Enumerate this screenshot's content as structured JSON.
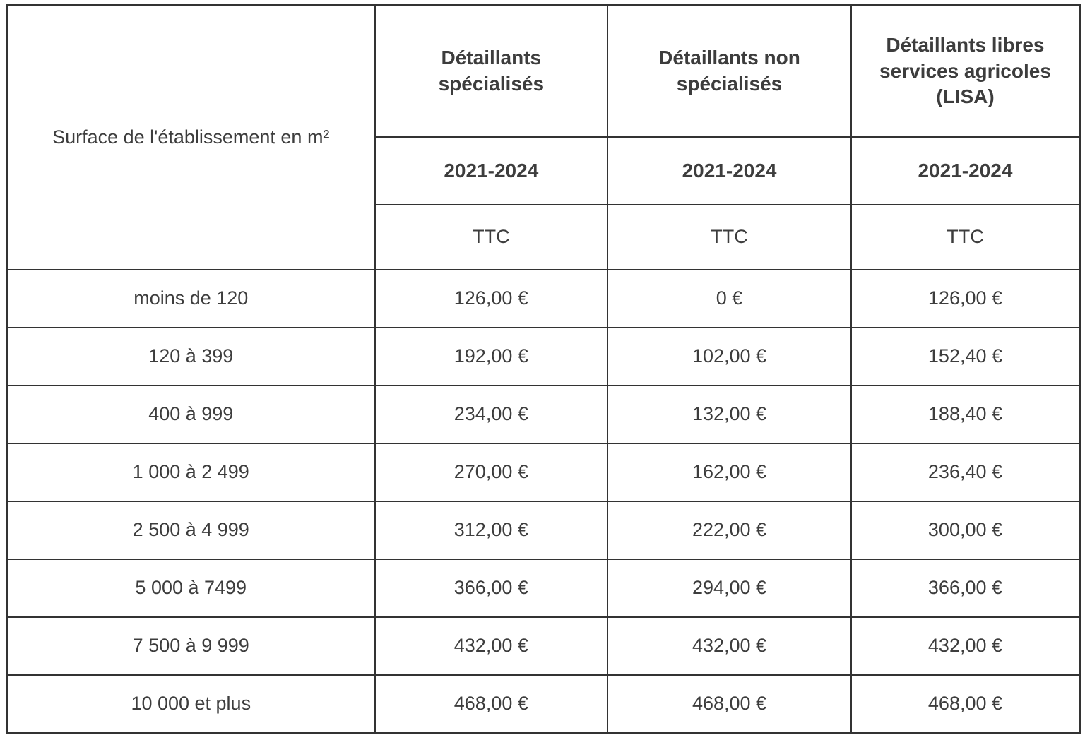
{
  "colors": {
    "border": "#333333",
    "text": "#3d3d3d",
    "background": "#ffffff"
  },
  "table": {
    "corner_header": "Surface de l'établissement en m²",
    "column_groups": [
      {
        "name": "Détaillants spécialisés",
        "period": "2021-2024",
        "tax": "TTC"
      },
      {
        "name": "Détaillants non spécialisés",
        "period": "2021-2024",
        "tax": "TTC"
      },
      {
        "name": "Détaillants libres services agricoles (LISA)",
        "period": "2021-2024",
        "tax": "TTC"
      }
    ],
    "rows": [
      {
        "surface": "moins de 120",
        "values": [
          "126,00 €",
          "0 €",
          "126,00 €"
        ]
      },
      {
        "surface": "120 à 399",
        "values": [
          "192,00 €",
          "102,00 €",
          "152,40 €"
        ]
      },
      {
        "surface": "400 à 999",
        "values": [
          "234,00 €",
          "132,00 €",
          "188,40 €"
        ]
      },
      {
        "surface": "1 000 à 2 499",
        "values": [
          "270,00 €",
          "162,00 €",
          "236,40 €"
        ]
      },
      {
        "surface": "2 500 à 4 999",
        "values": [
          "312,00 €",
          "222,00 €",
          "300,00 €"
        ]
      },
      {
        "surface": "5 000 à 7499",
        "values": [
          "366,00 €",
          "294,00 €",
          "366,00 €"
        ]
      },
      {
        "surface": "7 500 à 9 999",
        "values": [
          "432,00 €",
          "432,00 €",
          "432,00 €"
        ]
      },
      {
        "surface": "10 000 et plus",
        "values": [
          "468,00 €",
          "468,00 €",
          "468,00 €"
        ]
      }
    ]
  }
}
